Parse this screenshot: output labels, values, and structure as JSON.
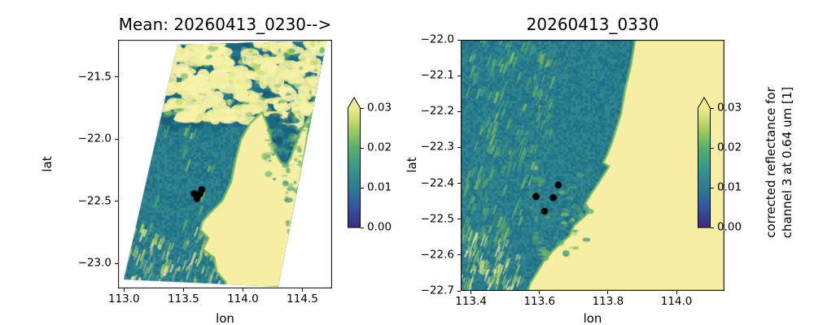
{
  "figure": {
    "background": "#ffffff",
    "text_color": "#000000"
  },
  "colormap": {
    "name": "viridis-like",
    "stops": [
      "#3a2d7d",
      "#31559f",
      "#2d7b93",
      "#35988a",
      "#58ae6c",
      "#aacf5f",
      "#f0ec8c"
    ],
    "over_color": "#f5efa0",
    "land_color": "#f6efa3",
    "coast_fringe": "#79b765",
    "marker_color": "#000000",
    "ocean_shades": [
      "#24768a",
      "#2a7d8d",
      "#2e828e",
      "#27788b",
      "#206e85",
      "#33898d",
      "#2f8590",
      "#25728a"
    ],
    "cloud_soft": [
      "#3f937f",
      "#4da272",
      "#68b468",
      "#8cc463",
      "#5aab7d"
    ],
    "cloud_bright": [
      "#8cc463",
      "#b7d75f",
      "#dce782",
      "#f2efa0",
      "#f7f2ac",
      "#68b468"
    ],
    "cloud_dark": [
      "#175f7b",
      "#1b6780",
      "#14586f",
      "#1e6e85"
    ]
  },
  "chart_data": [
    {
      "type": "heatmap",
      "title": "Mean: 20260413_0230-->",
      "xlabel": "lon",
      "ylabel": "lat",
      "xlim": [
        112.95,
        114.75
      ],
      "ylim": [
        -23.2,
        -21.2
      ],
      "x_ticks": [
        {
          "value": 113.0,
          "label": "113.0"
        },
        {
          "value": 113.5,
          "label": "113.5"
        },
        {
          "value": 114.0,
          "label": "114.0"
        },
        {
          "value": 114.5,
          "label": "114.5"
        }
      ],
      "y_ticks": [
        {
          "value": -21.5,
          "label": "−21.5"
        },
        {
          "value": -22.0,
          "label": "−22.0"
        },
        {
          "value": -22.5,
          "label": "−22.5"
        },
        {
          "value": -23.0,
          "label": "−23.0"
        }
      ],
      "swath_outline": [
        [
          113.45,
          -21.239
        ],
        [
          114.702,
          -21.207
        ],
        [
          114.298,
          -23.187
        ],
        [
          112.998,
          -23.128
        ]
      ],
      "land_outline": [
        [
          114.161,
          -21.782
        ],
        [
          114.059,
          -21.873
        ],
        [
          113.983,
          -22.004
        ],
        [
          113.936,
          -22.174
        ],
        [
          113.901,
          -22.344
        ],
        [
          113.826,
          -22.494
        ],
        [
          113.73,
          -22.586
        ],
        [
          113.662,
          -22.658
        ],
        [
          113.641,
          -22.729
        ],
        [
          113.71,
          -22.795
        ],
        [
          113.662,
          -22.886
        ],
        [
          113.758,
          -22.952
        ],
        [
          113.778,
          -23.063
        ],
        [
          113.853,
          -23.148
        ],
        [
          113.867,
          -23.21
        ],
        [
          114.312,
          -23.185
        ],
        [
          114.367,
          -22.919
        ],
        [
          114.415,
          -22.658
        ],
        [
          114.469,
          -22.383
        ],
        [
          114.51,
          -22.161
        ],
        [
          114.551,
          -21.925
        ],
        [
          114.572,
          -21.808
        ],
        [
          114.531,
          -21.86
        ],
        [
          114.476,
          -21.958
        ],
        [
          114.435,
          -22.056
        ],
        [
          114.401,
          -22.154
        ],
        [
          114.367,
          -22.207
        ],
        [
          114.319,
          -22.187
        ],
        [
          114.271,
          -22.108
        ],
        [
          114.237,
          -22.004
        ],
        [
          114.209,
          -21.893
        ]
      ],
      "scatter_points": [
        [
          113.655,
          -22.405
        ],
        [
          113.59,
          -22.437
        ],
        [
          113.64,
          -22.44
        ],
        [
          113.615,
          -22.478
        ]
      ],
      "cloud_zones": [
        {
          "lon": [
            113.33,
            114.7
          ],
          "lat": [
            -21.92,
            -21.21
          ],
          "density": 0.45,
          "style": "blob",
          "palette": "dark",
          "layer": "below"
        },
        {
          "lon": [
            113.33,
            114.7
          ],
          "lat": [
            -21.85,
            -21.21
          ],
          "density": 0.5,
          "style": "blob",
          "palette": "bright",
          "layer": "below"
        },
        {
          "lon": [
            114.18,
            114.5
          ],
          "lat": [
            -22.28,
            -21.8
          ],
          "density": 0.25,
          "style": "blob",
          "palette": "dark",
          "layer": "below"
        },
        {
          "lon": [
            113.0,
            113.75
          ],
          "lat": [
            -22.75,
            -21.9
          ],
          "density": 0.05,
          "style": "streak",
          "palette": "soft",
          "layer": "below"
        },
        {
          "lon": [
            112.97,
            113.85
          ],
          "lat": [
            -23.19,
            -22.72
          ],
          "density": 0.26,
          "style": "streak",
          "palette": "bright",
          "layer": "below"
        },
        {
          "lon": [
            114.38,
            114.72
          ],
          "lat": [
            -22.75,
            -21.9
          ],
          "density": 0.28,
          "style": "blob",
          "palette": "soft",
          "layer": "above"
        },
        {
          "lon": [
            114.18,
            114.55
          ],
          "lat": [
            -22.35,
            -21.85
          ],
          "density": 0.15,
          "style": "blob",
          "palette": "soft",
          "layer": "above"
        }
      ],
      "regions": {
        "ocean_approx_value": 0.012,
        "land": "saturated above vmax 0.03",
        "clouds": "0.015-0.03"
      },
      "colorbar": {
        "vmin": 0.0,
        "vmax": 0.03,
        "extend": "max",
        "tick_values": [
          0.0,
          0.01,
          0.02,
          0.03
        ],
        "tick_labels": [
          "0.00",
          "0.01",
          "0.02",
          "0.03"
        ],
        "label_lines": []
      }
    },
    {
      "type": "heatmap",
      "title": "20260413_0330",
      "xlabel": "lon",
      "ylabel": "lat",
      "xlim": [
        113.37,
        114.14
      ],
      "ylim": [
        -22.7,
        -22.0
      ],
      "x_ticks": [
        {
          "value": 113.4,
          "label": "113.4"
        },
        {
          "value": 113.6,
          "label": "113.6"
        },
        {
          "value": 113.8,
          "label": "113.8"
        },
        {
          "value": 114.0,
          "label": "114.0"
        }
      ],
      "y_ticks": [
        {
          "value": -22.0,
          "label": "−22.0"
        },
        {
          "value": -22.1,
          "label": "−22.1"
        },
        {
          "value": -22.2,
          "label": "−22.2"
        },
        {
          "value": -22.3,
          "label": "−22.3"
        },
        {
          "value": -22.4,
          "label": "−22.4"
        },
        {
          "value": -22.5,
          "label": "−22.5"
        },
        {
          "value": -22.6,
          "label": "−22.6"
        },
        {
          "value": -22.7,
          "label": "−22.7"
        }
      ],
      "land_outline": [
        [
          113.879,
          -22.0
        ],
        [
          113.867,
          -22.07
        ],
        [
          113.85,
          -22.138
        ],
        [
          113.838,
          -22.206
        ],
        [
          113.812,
          -22.285
        ],
        [
          113.798,
          -22.319
        ],
        [
          113.786,
          -22.342
        ],
        [
          113.803,
          -22.353
        ],
        [
          113.772,
          -22.399
        ],
        [
          113.748,
          -22.433
        ],
        [
          113.731,
          -22.46
        ],
        [
          113.741,
          -22.483
        ],
        [
          113.7,
          -22.519
        ],
        [
          113.688,
          -22.546
        ],
        [
          113.66,
          -22.569
        ],
        [
          113.636,
          -22.591
        ],
        [
          113.612,
          -22.618
        ],
        [
          113.593,
          -22.648
        ],
        [
          113.574,
          -22.677
        ],
        [
          113.565,
          -22.7
        ],
        [
          114.14,
          -22.7
        ],
        [
          114.14,
          -22.0
        ]
      ],
      "scatter_points": [
        [
          113.655,
          -22.405
        ],
        [
          113.59,
          -22.437
        ],
        [
          113.64,
          -22.44
        ],
        [
          113.615,
          -22.478
        ]
      ],
      "cloud_zones": [
        {
          "lon": [
            113.4,
            113.64
          ],
          "lat": [
            -22.32,
            -22.0
          ],
          "density": 0.22,
          "style": "streak",
          "palette": "soft",
          "layer": "below"
        },
        {
          "lon": [
            113.37,
            113.58
          ],
          "lat": [
            -22.56,
            -22.3
          ],
          "density": 0.16,
          "style": "streak",
          "palette": "soft",
          "layer": "below"
        },
        {
          "lon": [
            113.37,
            113.55
          ],
          "lat": [
            -22.7,
            -22.54
          ],
          "density": 0.42,
          "style": "streak",
          "palette": "bright",
          "layer": "below"
        },
        {
          "lon": [
            113.58,
            113.75
          ],
          "lat": [
            -22.62,
            -22.3
          ],
          "density": 0.1,
          "style": "blob",
          "palette": "soft",
          "layer": "above"
        }
      ],
      "regions": {
        "ocean_approx_value": 0.012,
        "land": "saturated above vmax 0.03",
        "clouds": "0.015-0.03"
      },
      "colorbar": {
        "vmin": 0.0,
        "vmax": 0.03,
        "extend": "max",
        "tick_values": [
          0.0,
          0.01,
          0.02,
          0.03
        ],
        "tick_labels": [
          "0.00",
          "0.01",
          "0.02",
          "0.03"
        ],
        "label_lines": [
          "corrected reflectance for",
          "channel 3 at 0.64 um [1]"
        ]
      }
    }
  ]
}
